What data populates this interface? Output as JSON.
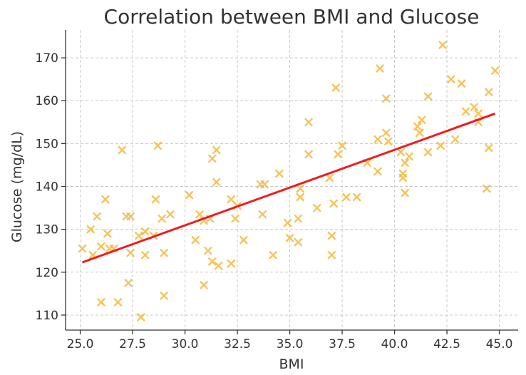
{
  "chart_data": {
    "type": "scatter",
    "title": "Correlation between BMI and Glucose",
    "xlabel": "BMI",
    "ylabel": "Glucose (mg/dL)",
    "xlim": [
      24.3,
      45.9
    ],
    "ylim": [
      106.5,
      176.5
    ],
    "xticks": [
      25.0,
      27.5,
      30.0,
      32.5,
      35.0,
      37.5,
      40.0,
      42.5,
      45.0
    ],
    "xtick_labels": [
      "25.0",
      "27.5",
      "30.0",
      "32.5",
      "35.0",
      "37.5",
      "40.0",
      "42.5",
      "45.0"
    ],
    "yticks": [
      110,
      120,
      130,
      140,
      150,
      160,
      170
    ],
    "ytick_labels": [
      "110",
      "120",
      "130",
      "140",
      "150",
      "160",
      "170"
    ],
    "grid": true,
    "scatter_color": "#f5b93d",
    "marker": "x",
    "points": [
      [
        25.1,
        125.5
      ],
      [
        25.5,
        130
      ],
      [
        25.6,
        124
      ],
      [
        25.8,
        133
      ],
      [
        26,
        126
      ],
      [
        26,
        113
      ],
      [
        26.2,
        137
      ],
      [
        26.3,
        129
      ],
      [
        26.4,
        125.5
      ],
      [
        26.6,
        125.5
      ],
      [
        26.8,
        113
      ],
      [
        27,
        148.5
      ],
      [
        27.2,
        133
      ],
      [
        27.3,
        117.5
      ],
      [
        27.4,
        133
      ],
      [
        27.4,
        124.5
      ],
      [
        27.9,
        109.5
      ],
      [
        27.8,
        128.5
      ],
      [
        28.1,
        129.5
      ],
      [
        28.1,
        124
      ],
      [
        28.5,
        128.5
      ],
      [
        28.6,
        137
      ],
      [
        28.7,
        149.5
      ],
      [
        28.9,
        132.5
      ],
      [
        29,
        124.5
      ],
      [
        29,
        114.5
      ],
      [
        29.3,
        133.5
      ],
      [
        30.2,
        138
      ],
      [
        30.5,
        127.5
      ],
      [
        30.7,
        133.5
      ],
      [
        30.9,
        132
      ],
      [
        30.9,
        117
      ],
      [
        31.1,
        125
      ],
      [
        31.2,
        132.5
      ],
      [
        31.3,
        122.5
      ],
      [
        31.3,
        146.5
      ],
      [
        31.5,
        148.5
      ],
      [
        31.5,
        141
      ],
      [
        31.6,
        121.5
      ],
      [
        32.2,
        122
      ],
      [
        32.2,
        137
      ],
      [
        32.4,
        132.5
      ],
      [
        32.5,
        135.5
      ],
      [
        32.8,
        127.5
      ],
      [
        33.6,
        140.5
      ],
      [
        33.7,
        133.5
      ],
      [
        33.8,
        140.5
      ],
      [
        34.2,
        124
      ],
      [
        34.5,
        143
      ],
      [
        34.9,
        131.5
      ],
      [
        35,
        128
      ],
      [
        35.4,
        127
      ],
      [
        35.4,
        132.5
      ],
      [
        35.5,
        137.5
      ],
      [
        35.5,
        139.5
      ],
      [
        35.9,
        155
      ],
      [
        35.9,
        147.5
      ],
      [
        36.3,
        135
      ],
      [
        36.9,
        142
      ],
      [
        37,
        124
      ],
      [
        37,
        128.5
      ],
      [
        37.1,
        136
      ],
      [
        37.2,
        163
      ],
      [
        37.3,
        147.5
      ],
      [
        37.5,
        149.5
      ],
      [
        37.7,
        137.5
      ],
      [
        38.2,
        137.5
      ],
      [
        38.7,
        145.5
      ],
      [
        39.2,
        151
      ],
      [
        39.2,
        143.5
      ],
      [
        39.3,
        167.5
      ],
      [
        39.6,
        152.5
      ],
      [
        39.6,
        160.5
      ],
      [
        39.7,
        150.5
      ],
      [
        40.3,
        148
      ],
      [
        40.4,
        143
      ],
      [
        40.4,
        142
      ],
      [
        40.5,
        138.5
      ],
      [
        40.5,
        145.5
      ],
      [
        40.7,
        147
      ],
      [
        41.1,
        154
      ],
      [
        41.2,
        152.5
      ],
      [
        41.3,
        155.5
      ],
      [
        41.6,
        161
      ],
      [
        41.6,
        148
      ],
      [
        42.2,
        149.5
      ],
      [
        42.3,
        173
      ],
      [
        42.7,
        165
      ],
      [
        42.9,
        151
      ],
      [
        43.2,
        164
      ],
      [
        43.4,
        157.5
      ],
      [
        43.8,
        158.5
      ],
      [
        44,
        157
      ],
      [
        44,
        155
      ],
      [
        44.4,
        139.5
      ],
      [
        44.5,
        162
      ],
      [
        44.5,
        149
      ],
      [
        44.8,
        167
      ]
    ],
    "trend_line": {
      "color": "#ee1c1c",
      "x": [
        25.1,
        44.8
      ],
      "y": [
        122.3,
        157.0
      ]
    }
  }
}
